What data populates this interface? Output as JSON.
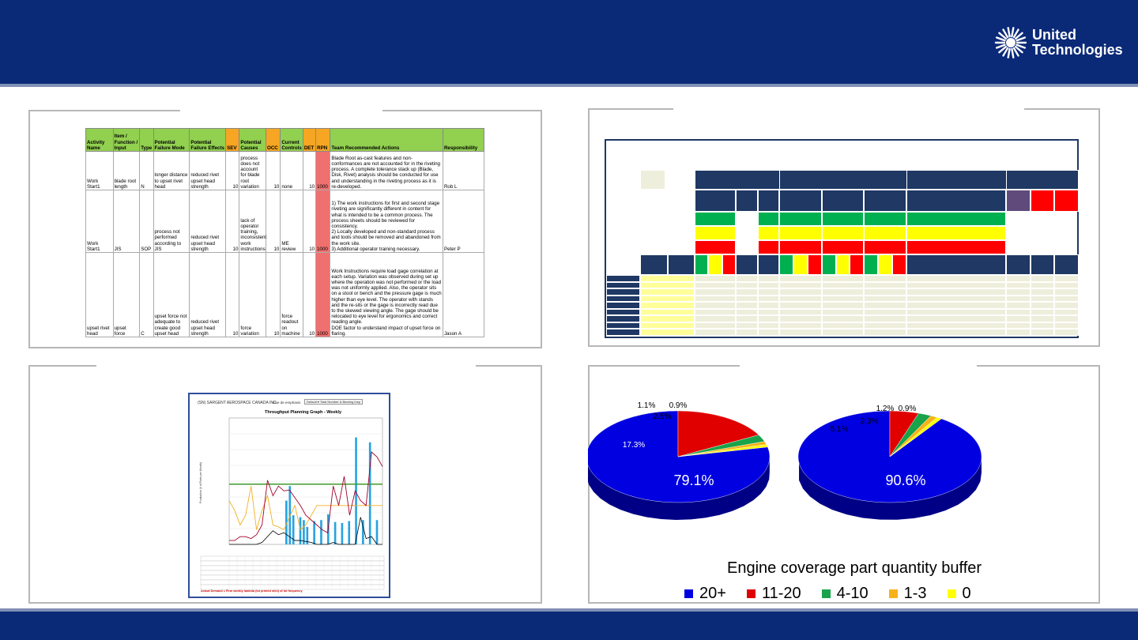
{
  "brand": {
    "line1": "United",
    "line2": "Technologies"
  },
  "fmea": {
    "headers": [
      "Activity Name",
      "Item / Function / Input",
      "Type",
      "Potential Failure Mode",
      "Potential Failure Effects",
      "SEV",
      "Potential Causes",
      "OCC",
      "Current Controls",
      "DET",
      "RPN",
      "Team Recommended Actions",
      "Responsibility"
    ],
    "rows": [
      {
        "activity": "Work Start1",
        "item": "blade root length",
        "type": "N",
        "mode": "longer distance to upset rivet head",
        "effects": "reduced rivet upset head strength",
        "sev": "10",
        "causes": "process does not account for blade root variation",
        "occ": "10",
        "controls": "none",
        "det": "10",
        "rpn": "1000",
        "actions": "Blade Root as-cast features and non-conformances are not accounted for in the riveting process. A complete tolerance stack up (Blade, Disk, Rivet) analysis should be conducted for use and understanding in the riveting process as it is re-developed.",
        "resp": "Rob L"
      },
      {
        "activity": "Work Start1",
        "item": "JIS",
        "type": "SOP",
        "mode": "process not performed according to JIS",
        "effects": "reduced rivet upset head strength",
        "sev": "10",
        "causes": "lack of operator training, inconsistent work instructions",
        "occ": "10",
        "controls": "ME review",
        "det": "10",
        "rpn": "1000",
        "actions": "1) The work instructions for first and second stage riveting are significantly different in content for what is intended to be a common process. The process sheets should be reviewed for consistency.\n2) Locally developed and non-standard process and tools should be removed and abandoned from the work site.\n3) Additional operator training necessary.",
        "resp": "Peter P"
      },
      {
        "activity": "upset rivet head",
        "item": "upset force",
        "type": "C",
        "mode": "upset force not adequate to create good upset head",
        "effects": "reduced rivet upset head strength",
        "sev": "10",
        "causes": "force variation",
        "occ": "10",
        "controls": "force readout on machine",
        "det": "10",
        "rpn": "1000",
        "actions": "Work Instructions require load gage correlation at each setup. Variation was observed during set up where the operation was not performed or the load was not uniformly applied. Also, the operator sits on a stool or bench and the pressure gage is much higher than eye level. The operator with stands and the re-sits or the gage is incorrectly read due to the skewed viewing angle. The gage should be relocated to eye level for ergonomics and correct reading angle.\nDOE factor to understand impact of upset force on flaring.",
        "resp": "Jason A"
      }
    ]
  },
  "throughput": {
    "company": "(SN) SARGENT AEROSPACE CANADA INC.",
    "select_label": "Line de emphasis",
    "select_value": "Default ▾ Total Number & Bearing Insp",
    "title": "Throughput Planning Graph - Weekly",
    "ylabel": "Production (# of Parts per Month)",
    "note": "Actual Demand = Firm weekly lambda (lot printed shin) of lot frequency"
  },
  "chart_data": [
    {
      "type": "pie",
      "title": "",
      "categories": [
        "20+",
        "11-20",
        "4-10",
        "1-3",
        "0"
      ],
      "values": [
        79.1,
        17.3,
        2.5,
        1.1,
        0.9
      ],
      "labels": [
        "79.1%",
        "17.3%",
        "2.5%",
        "1.1%",
        "0.9%"
      ],
      "colors": [
        "#0000e0",
        "#e00000",
        "#19a34a",
        "#f7b21a",
        "#ffff00"
      ]
    },
    {
      "type": "pie",
      "title": "",
      "categories": [
        "20+",
        "11-20",
        "4-10",
        "1-3",
        "0"
      ],
      "values": [
        90.6,
        5.1,
        2.3,
        1.2,
        0.9
      ],
      "labels": [
        "90.6%",
        "5.1%",
        "2.3%",
        "1.2%",
        "0.9%"
      ],
      "colors": [
        "#0000e0",
        "#e00000",
        "#19a34a",
        "#f7b21a",
        "#ffff00"
      ]
    }
  ],
  "pie_legend": {
    "title": "Engine coverage part quantity buffer",
    "items": [
      {
        "label": "20+",
        "color": "#0000e0"
      },
      {
        "label": "11-20",
        "color": "#e00000"
      },
      {
        "label": "4-10",
        "color": "#19a34a"
      },
      {
        "label": "1-3",
        "color": "#f7b21a"
      },
      {
        "label": "0",
        "color": "#ffff00"
      }
    ]
  }
}
